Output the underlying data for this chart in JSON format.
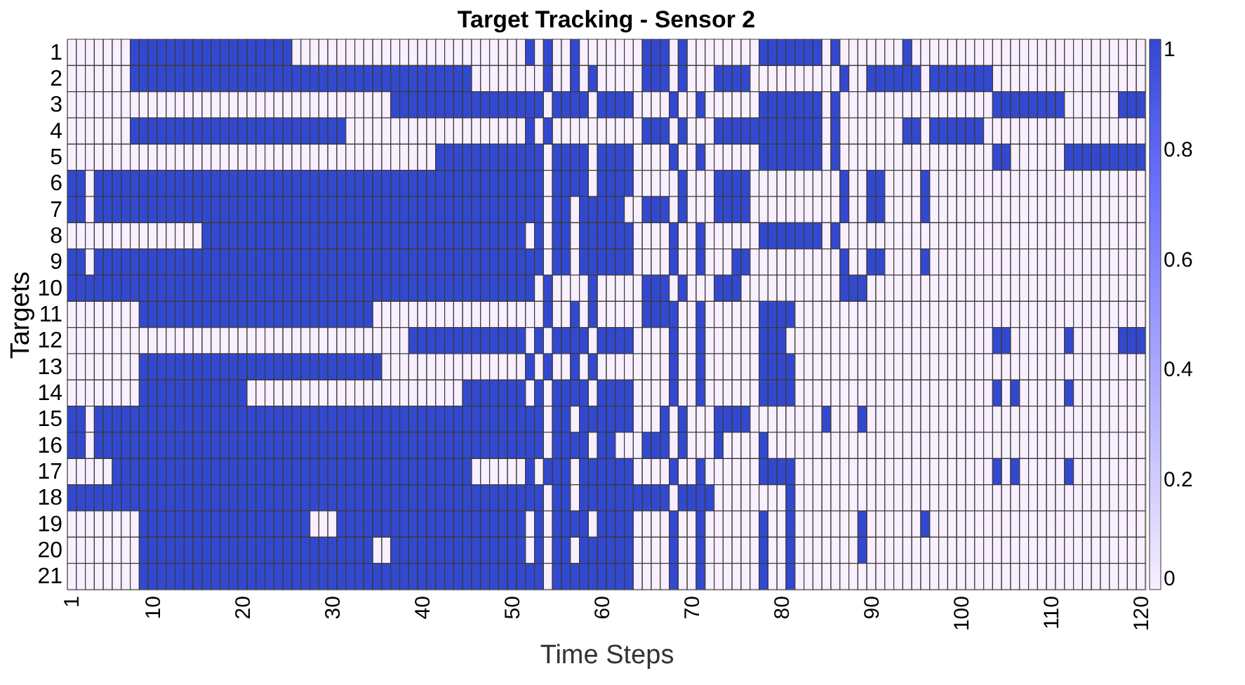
{
  "chart_data": {
    "type": "heatmap",
    "title": "Target Tracking - Sensor 2",
    "xlabel": "Time Steps",
    "ylabel": "Targets",
    "categories": [
      "1",
      null,
      null,
      null,
      null,
      null,
      null,
      null,
      null,
      "10",
      null,
      null,
      null,
      null,
      null,
      null,
      null,
      null,
      null,
      "20",
      null,
      null,
      null,
      null,
      null,
      null,
      null,
      null,
      null,
      "30",
      null,
      null,
      null,
      null,
      null,
      null,
      null,
      null,
      null,
      "40",
      null,
      null,
      null,
      null,
      null,
      null,
      null,
      null,
      null,
      "50",
      null,
      null,
      null,
      null,
      null,
      null,
      null,
      null,
      null,
      "60",
      null,
      null,
      null,
      null,
      null,
      null,
      null,
      null,
      null,
      "70",
      null,
      null,
      null,
      null,
      null,
      null,
      null,
      null,
      null,
      "80",
      null,
      null,
      null,
      null,
      null,
      null,
      null,
      null,
      null,
      "90",
      null,
      null,
      null,
      null,
      null,
      null,
      null,
      null,
      null,
      "100",
      null,
      null,
      null,
      null,
      null,
      null,
      null,
      null,
      null,
      "110",
      null,
      null,
      null,
      null,
      null,
      null,
      null,
      null,
      null,
      "120"
    ],
    "y_categories": [
      "1",
      "2",
      "3",
      "4",
      "5",
      "6",
      "7",
      "8",
      "9",
      "10",
      "11",
      "12",
      "13",
      "14",
      "15",
      "16",
      "17",
      "18",
      "19",
      "20",
      "21"
    ],
    "colors": [
      "#ffffff",
      "#3249cf"
    ],
    "clim": [
      0,
      1
    ],
    "cticks": [
      0,
      0.2,
      0.4,
      0.6,
      0.8,
      1
    ],
    "cells": [
      [
        0,
        0,
        0,
        0,
        0,
        0,
        0,
        1,
        1,
        1,
        1,
        1,
        1,
        1,
        1,
        1,
        1,
        1,
        1,
        1,
        1,
        1,
        1,
        1,
        1,
        0,
        0,
        0,
        0,
        0,
        0,
        0,
        0,
        0,
        0,
        0,
        0,
        0,
        0,
        0,
        0,
        0,
        0,
        0,
        0,
        0,
        0,
        0,
        0,
        0,
        0,
        1,
        0,
        1,
        0,
        0,
        1,
        0,
        0,
        0,
        0,
        0,
        0,
        0,
        1,
        1,
        1,
        0,
        1,
        0,
        0,
        0,
        0,
        0,
        0,
        0,
        0,
        1,
        1,
        1,
        1,
        1,
        1,
        1,
        0,
        1,
        0,
        0,
        0,
        0,
        0,
        0,
        0,
        1,
        0,
        0,
        0,
        0,
        0,
        0,
        0,
        0,
        0,
        0,
        0,
        0,
        0,
        0,
        0,
        0,
        0,
        0,
        0,
        0,
        0,
        0,
        0,
        0,
        0,
        0
      ],
      [
        0,
        0,
        0,
        0,
        0,
        0,
        0,
        1,
        1,
        1,
        1,
        1,
        1,
        1,
        1,
        1,
        1,
        1,
        1,
        1,
        1,
        1,
        1,
        1,
        1,
        1,
        1,
        1,
        1,
        1,
        1,
        1,
        1,
        1,
        1,
        1,
        1,
        1,
        1,
        1,
        1,
        1,
        1,
        1,
        1,
        0,
        0,
        0,
        0,
        0,
        0,
        0,
        0,
        1,
        0,
        0,
        1,
        0,
        1,
        0,
        0,
        0,
        0,
        0,
        1,
        1,
        1,
        0,
        1,
        0,
        0,
        0,
        1,
        1,
        1,
        1,
        0,
        0,
        0,
        0,
        0,
        0,
        0,
        0,
        0,
        0,
        1,
        0,
        0,
        1,
        1,
        1,
        1,
        1,
        1,
        0,
        1,
        1,
        1,
        1,
        1,
        1,
        1,
        0,
        0,
        0,
        0,
        0,
        0,
        0,
        0,
        0,
        0,
        0,
        0,
        0,
        0,
        0,
        0,
        0
      ],
      [
        0,
        0,
        0,
        0,
        0,
        0,
        0,
        0,
        0,
        0,
        0,
        0,
        0,
        0,
        0,
        0,
        0,
        0,
        0,
        0,
        0,
        0,
        0,
        0,
        0,
        0,
        0,
        0,
        0,
        0,
        0,
        0,
        0,
        0,
        0,
        0,
        1,
        1,
        1,
        1,
        1,
        1,
        1,
        1,
        1,
        1,
        1,
        1,
        1,
        1,
        1,
        1,
        1,
        0,
        1,
        1,
        1,
        1,
        0,
        1,
        1,
        1,
        1,
        0,
        0,
        0,
        0,
        1,
        0,
        0,
        1,
        0,
        0,
        0,
        0,
        0,
        0,
        1,
        1,
        1,
        1,
        1,
        1,
        1,
        0,
        1,
        0,
        0,
        0,
        0,
        0,
        0,
        0,
        0,
        0,
        0,
        0,
        0,
        0,
        0,
        0,
        0,
        0,
        1,
        1,
        1,
        1,
        1,
        1,
        1,
        1,
        0,
        0,
        0,
        0,
        0,
        0,
        1,
        1,
        1
      ],
      [
        0,
        0,
        0,
        0,
        0,
        0,
        0,
        1,
        1,
        1,
        1,
        1,
        1,
        1,
        1,
        1,
        1,
        1,
        1,
        1,
        1,
        1,
        1,
        1,
        1,
        1,
        1,
        1,
        1,
        1,
        1,
        0,
        0,
        0,
        0,
        0,
        0,
        0,
        0,
        0,
        0,
        0,
        0,
        0,
        0,
        0,
        0,
        0,
        0,
        0,
        0,
        1,
        0,
        1,
        0,
        0,
        0,
        0,
        0,
        0,
        0,
        0,
        0,
        0,
        1,
        1,
        1,
        0,
        1,
        0,
        0,
        0,
        1,
        1,
        1,
        1,
        1,
        1,
        1,
        1,
        1,
        1,
        1,
        1,
        0,
        1,
        0,
        0,
        0,
        0,
        0,
        0,
        0,
        1,
        1,
        0,
        1,
        1,
        1,
        1,
        1,
        1,
        0,
        0,
        0,
        0,
        0,
        0,
        0,
        0,
        0,
        0,
        0,
        0,
        0,
        0,
        0,
        0,
        0,
        0
      ],
      [
        0,
        0,
        0,
        0,
        0,
        0,
        0,
        0,
        0,
        0,
        0,
        0,
        0,
        0,
        0,
        0,
        0,
        0,
        0,
        0,
        0,
        0,
        0,
        0,
        0,
        0,
        0,
        0,
        0,
        0,
        0,
        0,
        0,
        0,
        0,
        0,
        0,
        0,
        0,
        0,
        0,
        1,
        1,
        1,
        1,
        1,
        1,
        1,
        1,
        1,
        1,
        1,
        1,
        0,
        1,
        1,
        1,
        1,
        0,
        1,
        1,
        1,
        1,
        0,
        0,
        0,
        0,
        1,
        0,
        0,
        1,
        0,
        0,
        0,
        0,
        0,
        0,
        1,
        1,
        1,
        1,
        1,
        1,
        1,
        0,
        1,
        0,
        0,
        0,
        0,
        0,
        0,
        0,
        0,
        0,
        0,
        0,
        0,
        0,
        0,
        0,
        0,
        0,
        1,
        1,
        0,
        0,
        0,
        0,
        0,
        0,
        1,
        1,
        1,
        1,
        1,
        1,
        1,
        1,
        1
      ],
      [
        1,
        1,
        0,
        1,
        1,
        1,
        1,
        1,
        1,
        1,
        1,
        1,
        1,
        1,
        1,
        1,
        1,
        1,
        1,
        1,
        1,
        1,
        1,
        1,
        1,
        1,
        1,
        1,
        1,
        1,
        1,
        1,
        1,
        1,
        1,
        1,
        1,
        1,
        1,
        1,
        1,
        1,
        1,
        1,
        1,
        1,
        1,
        1,
        1,
        1,
        1,
        1,
        1,
        0,
        1,
        1,
        1,
        1,
        0,
        1,
        1,
        1,
        1,
        0,
        0,
        0,
        0,
        0,
        1,
        0,
        0,
        0,
        1,
        1,
        1,
        1,
        0,
        0,
        0,
        0,
        0,
        0,
        0,
        0,
        0,
        0,
        1,
        0,
        0,
        1,
        1,
        0,
        0,
        0,
        0,
        1,
        0,
        0,
        0,
        0,
        0,
        0,
        0,
        0,
        0,
        0,
        0,
        0,
        0,
        0,
        0,
        0,
        0,
        0,
        0,
        0,
        0,
        0,
        0,
        0
      ],
      [
        1,
        1,
        0,
        1,
        1,
        1,
        1,
        1,
        1,
        1,
        1,
        1,
        1,
        1,
        1,
        1,
        1,
        1,
        1,
        1,
        1,
        1,
        1,
        1,
        1,
        1,
        1,
        1,
        1,
        1,
        1,
        1,
        1,
        1,
        1,
        1,
        1,
        1,
        1,
        1,
        1,
        1,
        1,
        1,
        1,
        1,
        1,
        1,
        1,
        1,
        1,
        1,
        1,
        0,
        1,
        1,
        0,
        1,
        1,
        1,
        1,
        1,
        0,
        0,
        1,
        1,
        1,
        0,
        1,
        0,
        0,
        0,
        1,
        1,
        1,
        1,
        0,
        0,
        0,
        0,
        0,
        0,
        0,
        0,
        0,
        0,
        1,
        0,
        0,
        1,
        1,
        0,
        0,
        0,
        0,
        1,
        0,
        0,
        0,
        0,
        0,
        0,
        0,
        0,
        0,
        0,
        0,
        0,
        0,
        0,
        0,
        0,
        0,
        0,
        0,
        0,
        0,
        0,
        0,
        0
      ],
      [
        0,
        0,
        0,
        0,
        0,
        0,
        0,
        0,
        0,
        0,
        0,
        0,
        0,
        0,
        0,
        1,
        1,
        1,
        1,
        1,
        1,
        1,
        1,
        1,
        1,
        1,
        1,
        1,
        1,
        1,
        1,
        1,
        1,
        1,
        1,
        1,
        1,
        1,
        1,
        1,
        1,
        1,
        1,
        1,
        1,
        1,
        1,
        1,
        1,
        1,
        1,
        0,
        1,
        0,
        1,
        1,
        0,
        1,
        1,
        1,
        1,
        1,
        1,
        0,
        0,
        0,
        0,
        1,
        0,
        0,
        1,
        0,
        0,
        0,
        0,
        0,
        0,
        1,
        1,
        1,
        1,
        1,
        1,
        1,
        0,
        1,
        0,
        0,
        0,
        0,
        0,
        0,
        0,
        0,
        0,
        0,
        0,
        0,
        0,
        0,
        0,
        0,
        0,
        0,
        0,
        0,
        0,
        0,
        0,
        0,
        0,
        0,
        0,
        0,
        0,
        0,
        0,
        0,
        0,
        0
      ],
      [
        1,
        1,
        0,
        1,
        1,
        1,
        1,
        1,
        1,
        1,
        1,
        1,
        1,
        1,
        1,
        1,
        1,
        1,
        1,
        1,
        1,
        1,
        1,
        1,
        1,
        1,
        1,
        1,
        1,
        1,
        1,
        1,
        1,
        1,
        1,
        1,
        1,
        1,
        1,
        1,
        1,
        1,
        1,
        1,
        1,
        1,
        1,
        1,
        1,
        1,
        1,
        1,
        1,
        0,
        1,
        1,
        0,
        1,
        1,
        1,
        1,
        1,
        1,
        0,
        0,
        0,
        0,
        1,
        0,
        0,
        1,
        0,
        0,
        0,
        1,
        1,
        0,
        0,
        0,
        0,
        0,
        0,
        0,
        0,
        0,
        0,
        1,
        0,
        0,
        1,
        1,
        0,
        0,
        0,
        0,
        1,
        0,
        0,
        0,
        0,
        0,
        0,
        0,
        0,
        0,
        0,
        0,
        0,
        0,
        0,
        0,
        0,
        0,
        0,
        0,
        0,
        0,
        0,
        0,
        0
      ],
      [
        1,
        1,
        1,
        1,
        1,
        1,
        1,
        1,
        1,
        1,
        1,
        1,
        1,
        1,
        1,
        1,
        1,
        1,
        1,
        1,
        1,
        1,
        1,
        1,
        1,
        1,
        1,
        1,
        1,
        1,
        1,
        1,
        1,
        1,
        1,
        1,
        1,
        1,
        1,
        1,
        1,
        1,
        1,
        1,
        1,
        1,
        1,
        1,
        1,
        1,
        1,
        1,
        0,
        1,
        0,
        0,
        0,
        0,
        1,
        0,
        0,
        0,
        0,
        0,
        1,
        1,
        1,
        0,
        1,
        0,
        0,
        0,
        1,
        1,
        1,
        0,
        0,
        0,
        0,
        0,
        0,
        0,
        0,
        0,
        0,
        0,
        1,
        1,
        1,
        0,
        0,
        0,
        0,
        0,
        0,
        0,
        0,
        0,
        0,
        0,
        0,
        0,
        0,
        0,
        0,
        0,
        0,
        0,
        0,
        0,
        0,
        0,
        0,
        0,
        0,
        0,
        0,
        0,
        0,
        0
      ],
      [
        0,
        0,
        0,
        0,
        0,
        0,
        0,
        0,
        1,
        1,
        1,
        1,
        1,
        1,
        1,
        1,
        1,
        1,
        1,
        1,
        1,
        1,
        1,
        1,
        1,
        1,
        1,
        1,
        1,
        1,
        1,
        1,
        1,
        1,
        0,
        0,
        0,
        0,
        0,
        0,
        0,
        0,
        0,
        0,
        0,
        0,
        0,
        0,
        0,
        0,
        0,
        0,
        0,
        1,
        0,
        0,
        1,
        0,
        1,
        0,
        0,
        0,
        0,
        0,
        1,
        1,
        1,
        1,
        0,
        0,
        1,
        0,
        0,
        0,
        0,
        0,
        0,
        1,
        1,
        1,
        1,
        0,
        0,
        0,
        0,
        0,
        0,
        0,
        0,
        0,
        0,
        0,
        0,
        0,
        0,
        0,
        0,
        0,
        0,
        0,
        0,
        0,
        0,
        0,
        0,
        0,
        0,
        0,
        0,
        0,
        0,
        0,
        0,
        0,
        0,
        0,
        0,
        0,
        0,
        0
      ],
      [
        0,
        0,
        0,
        0,
        0,
        0,
        0,
        0,
        0,
        0,
        0,
        0,
        0,
        0,
        0,
        0,
        0,
        0,
        0,
        0,
        0,
        0,
        0,
        0,
        0,
        0,
        0,
        0,
        0,
        0,
        0,
        0,
        0,
        0,
        0,
        0,
        0,
        0,
        1,
        1,
        1,
        1,
        1,
        1,
        1,
        1,
        1,
        1,
        1,
        1,
        1,
        0,
        1,
        0,
        1,
        1,
        1,
        1,
        0,
        1,
        1,
        1,
        1,
        0,
        0,
        0,
        0,
        1,
        0,
        0,
        1,
        0,
        0,
        0,
        0,
        0,
        0,
        1,
        1,
        1,
        0,
        0,
        0,
        0,
        0,
        0,
        0,
        0,
        0,
        0,
        0,
        0,
        0,
        0,
        0,
        0,
        0,
        0,
        0,
        0,
        0,
        0,
        0,
        1,
        1,
        0,
        0,
        0,
        0,
        0,
        0,
        1,
        0,
        0,
        0,
        0,
        0,
        1,
        1,
        1
      ],
      [
        0,
        0,
        0,
        0,
        0,
        0,
        0,
        0,
        1,
        1,
        1,
        1,
        1,
        1,
        1,
        1,
        1,
        1,
        1,
        1,
        1,
        1,
        1,
        1,
        1,
        1,
        1,
        1,
        1,
        1,
        1,
        1,
        1,
        1,
        1,
        0,
        0,
        0,
        0,
        0,
        0,
        0,
        0,
        0,
        0,
        0,
        0,
        0,
        0,
        0,
        0,
        1,
        0,
        1,
        0,
        0,
        1,
        0,
        1,
        0,
        0,
        0,
        0,
        0,
        0,
        0,
        0,
        1,
        0,
        0,
        1,
        0,
        0,
        0,
        0,
        0,
        0,
        1,
        1,
        1,
        1,
        0,
        0,
        0,
        0,
        0,
        0,
        0,
        0,
        0,
        0,
        0,
        0,
        0,
        0,
        0,
        0,
        0,
        0,
        0,
        0,
        0,
        0,
        0,
        0,
        0,
        0,
        0,
        0,
        0,
        0,
        0,
        0,
        0,
        0,
        0,
        0,
        0,
        0,
        0
      ],
      [
        0,
        0,
        0,
        0,
        0,
        0,
        0,
        0,
        1,
        1,
        1,
        1,
        1,
        1,
        1,
        1,
        1,
        1,
        1,
        1,
        0,
        0,
        0,
        0,
        0,
        0,
        0,
        0,
        0,
        0,
        0,
        0,
        0,
        0,
        0,
        0,
        0,
        0,
        0,
        0,
        0,
        0,
        0,
        0,
        1,
        1,
        1,
        1,
        1,
        1,
        1,
        0,
        1,
        0,
        1,
        1,
        1,
        1,
        0,
        1,
        1,
        1,
        1,
        0,
        0,
        0,
        0,
        1,
        0,
        0,
        1,
        0,
        0,
        0,
        0,
        0,
        0,
        1,
        1,
        1,
        1,
        0,
        0,
        0,
        0,
        0,
        0,
        0,
        0,
        0,
        0,
        0,
        0,
        0,
        0,
        0,
        0,
        0,
        0,
        0,
        0,
        0,
        0,
        1,
        0,
        1,
        0,
        0,
        0,
        0,
        0,
        1,
        0,
        0,
        0,
        0,
        0,
        0,
        0,
        0
      ],
      [
        1,
        1,
        0,
        1,
        1,
        1,
        1,
        1,
        1,
        1,
        1,
        1,
        1,
        1,
        1,
        1,
        1,
        1,
        1,
        1,
        1,
        1,
        1,
        1,
        1,
        1,
        1,
        1,
        1,
        1,
        1,
        1,
        1,
        1,
        1,
        1,
        1,
        1,
        1,
        1,
        1,
        1,
        1,
        1,
        1,
        1,
        1,
        1,
        1,
        1,
        1,
        1,
        1,
        0,
        1,
        1,
        0,
        1,
        1,
        1,
        1,
        1,
        1,
        0,
        0,
        0,
        1,
        0,
        1,
        0,
        0,
        0,
        1,
        1,
        1,
        1,
        0,
        0,
        0,
        0,
        0,
        0,
        0,
        0,
        1,
        0,
        0,
        0,
        1,
        0,
        0,
        0,
        0,
        0,
        0,
        0,
        0,
        0,
        0,
        0,
        0,
        0,
        0,
        0,
        0,
        0,
        0,
        0,
        0,
        0,
        0,
        0,
        0,
        0,
        0,
        0,
        0,
        0,
        0,
        0
      ],
      [
        1,
        1,
        0,
        1,
        1,
        1,
        1,
        1,
        1,
        1,
        1,
        1,
        1,
        1,
        1,
        1,
        1,
        1,
        1,
        1,
        1,
        1,
        1,
        1,
        1,
        1,
        1,
        1,
        1,
        1,
        1,
        1,
        1,
        1,
        1,
        1,
        1,
        1,
        1,
        1,
        1,
        1,
        1,
        1,
        1,
        1,
        1,
        1,
        1,
        1,
        1,
        1,
        1,
        0,
        1,
        1,
        1,
        1,
        0,
        1,
        1,
        0,
        0,
        0,
        1,
        1,
        1,
        0,
        1,
        0,
        0,
        0,
        1,
        0,
        0,
        0,
        0,
        1,
        0,
        0,
        0,
        0,
        0,
        0,
        0,
        0,
        0,
        0,
        0,
        0,
        0,
        0,
        0,
        0,
        0,
        0,
        0,
        0,
        0,
        0,
        0,
        0,
        0,
        0,
        0,
        0,
        0,
        0,
        0,
        0,
        0,
        0,
        0,
        0,
        0,
        0,
        0,
        0,
        0,
        0
      ],
      [
        0,
        0,
        0,
        0,
        0,
        1,
        1,
        1,
        1,
        1,
        1,
        1,
        1,
        1,
        1,
        1,
        1,
        1,
        1,
        1,
        1,
        1,
        1,
        1,
        1,
        1,
        1,
        1,
        1,
        1,
        1,
        1,
        1,
        1,
        1,
        1,
        1,
        1,
        1,
        1,
        1,
        1,
        1,
        1,
        1,
        0,
        0,
        0,
        0,
        0,
        0,
        1,
        0,
        1,
        1,
        1,
        0,
        1,
        1,
        1,
        1,
        1,
        1,
        0,
        0,
        0,
        0,
        1,
        0,
        0,
        1,
        0,
        0,
        0,
        0,
        0,
        0,
        1,
        1,
        1,
        1,
        0,
        0,
        0,
        0,
        0,
        0,
        0,
        0,
        0,
        0,
        0,
        0,
        0,
        0,
        0,
        0,
        0,
        0,
        0,
        0,
        0,
        0,
        1,
        0,
        1,
        0,
        0,
        0,
        0,
        0,
        1,
        0,
        0,
        0,
        0,
        0,
        0,
        0,
        0
      ],
      [
        1,
        1,
        1,
        1,
        1,
        1,
        1,
        1,
        1,
        1,
        1,
        1,
        1,
        1,
        1,
        1,
        1,
        1,
        1,
        1,
        1,
        1,
        1,
        1,
        1,
        1,
        1,
        1,
        1,
        1,
        1,
        1,
        1,
        1,
        1,
        1,
        1,
        1,
        1,
        1,
        1,
        1,
        1,
        1,
        1,
        1,
        1,
        1,
        1,
        1,
        1,
        1,
        1,
        0,
        1,
        1,
        0,
        1,
        1,
        1,
        1,
        1,
        1,
        1,
        1,
        1,
        1,
        0,
        1,
        1,
        1,
        1,
        0,
        0,
        0,
        0,
        0,
        0,
        0,
        0,
        1,
        0,
        0,
        0,
        0,
        0,
        0,
        0,
        0,
        0,
        0,
        0,
        0,
        0,
        0,
        0,
        0,
        0,
        0,
        0,
        0,
        0,
        0,
        0,
        0,
        0,
        0,
        0,
        0,
        0,
        0,
        0,
        0,
        0,
        0,
        0,
        0,
        0,
        0,
        0
      ],
      [
        0,
        0,
        0,
        0,
        0,
        0,
        0,
        0,
        1,
        1,
        1,
        1,
        1,
        1,
        1,
        1,
        1,
        1,
        1,
        1,
        1,
        1,
        1,
        1,
        1,
        1,
        1,
        0,
        0,
        0,
        1,
        1,
        1,
        1,
        1,
        1,
        1,
        1,
        1,
        1,
        1,
        1,
        1,
        1,
        1,
        1,
        1,
        1,
        1,
        1,
        1,
        0,
        1,
        0,
        1,
        1,
        1,
        1,
        0,
        1,
        1,
        1,
        1,
        0,
        0,
        0,
        0,
        1,
        0,
        0,
        1,
        0,
        0,
        0,
        0,
        0,
        0,
        1,
        0,
        0,
        1,
        0,
        0,
        0,
        0,
        0,
        0,
        0,
        1,
        0,
        0,
        0,
        0,
        0,
        0,
        1,
        0,
        0,
        0,
        0,
        0,
        0,
        0,
        0,
        0,
        0,
        0,
        0,
        0,
        0,
        0,
        0,
        0,
        0,
        0,
        0,
        0,
        0,
        0,
        0
      ],
      [
        0,
        0,
        0,
        0,
        0,
        0,
        0,
        0,
        1,
        1,
        1,
        1,
        1,
        1,
        1,
        1,
        1,
        1,
        1,
        1,
        1,
        1,
        1,
        1,
        1,
        1,
        1,
        1,
        1,
        1,
        1,
        1,
        1,
        1,
        0,
        0,
        1,
        1,
        1,
        1,
        1,
        1,
        1,
        1,
        1,
        1,
        1,
        1,
        1,
        1,
        1,
        0,
        1,
        0,
        1,
        1,
        0,
        1,
        1,
        1,
        1,
        1,
        1,
        0,
        0,
        0,
        0,
        1,
        0,
        0,
        1,
        0,
        0,
        0,
        0,
        0,
        0,
        1,
        0,
        0,
        1,
        0,
        0,
        0,
        0,
        0,
        0,
        0,
        1,
        0,
        0,
        0,
        0,
        0,
        0,
        0,
        0,
        0,
        0,
        0,
        0,
        0,
        0,
        0,
        0,
        0,
        0,
        0,
        0,
        0,
        0,
        0,
        0,
        0,
        0,
        0,
        0,
        0,
        0,
        0
      ],
      [
        0,
        0,
        0,
        0,
        0,
        0,
        0,
        0,
        1,
        1,
        1,
        1,
        1,
        1,
        1,
        1,
        1,
        1,
        1,
        1,
        1,
        1,
        1,
        1,
        1,
        1,
        1,
        1,
        1,
        1,
        1,
        1,
        1,
        1,
        1,
        1,
        1,
        1,
        1,
        1,
        1,
        1,
        1,
        1,
        1,
        1,
        1,
        1,
        1,
        1,
        1,
        1,
        1,
        0,
        1,
        1,
        1,
        1,
        1,
        1,
        1,
        1,
        1,
        0,
        0,
        0,
        0,
        1,
        0,
        0,
        1,
        0,
        0,
        0,
        0,
        0,
        0,
        1,
        0,
        0,
        1,
        0,
        0,
        0,
        0,
        0,
        0,
        0,
        0,
        0,
        0,
        0,
        0,
        0,
        0,
        0,
        0,
        0,
        0,
        0,
        0,
        0,
        0,
        0,
        0,
        0,
        0,
        0,
        0,
        0,
        0,
        0,
        0,
        0,
        0,
        0,
        0,
        0,
        0,
        0
      ]
    ]
  }
}
